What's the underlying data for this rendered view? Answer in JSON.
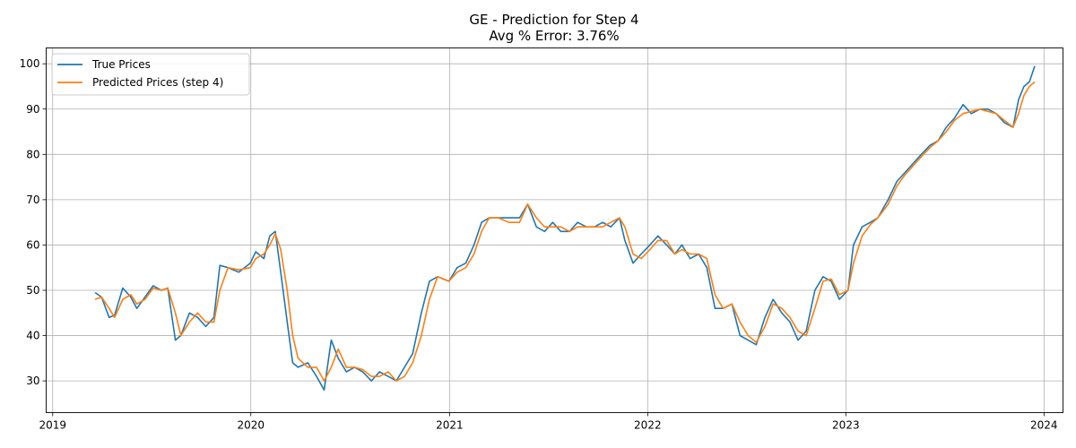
{
  "chart_data": {
    "type": "line",
    "title": "GE - Prediction for Step 4",
    "subtitle": "Avg % Error: 3.76%",
    "xlabel": "",
    "ylabel": "",
    "x_range": [
      "2018-12-20",
      "2024-02-05"
    ],
    "ylim": [
      23,
      103.5
    ],
    "x_ticks": [
      "2019-01-01",
      "2020-01-01",
      "2021-01-01",
      "2022-01-01",
      "2023-01-01",
      "2024-01-01"
    ],
    "x_tick_labels": [
      "2019",
      "2020",
      "2021",
      "2022",
      "2023",
      "2024"
    ],
    "y_ticks": [
      30,
      40,
      50,
      60,
      70,
      80,
      90,
      100
    ],
    "grid": true,
    "legend_position": "top-left",
    "series": [
      {
        "name": "True Prices",
        "color": "#1f77b4",
        "points": [
          [
            "2019-03-20",
            49.5
          ],
          [
            "2019-04-01",
            48.5
          ],
          [
            "2019-04-15",
            44
          ],
          [
            "2019-04-25",
            44.5
          ],
          [
            "2019-05-10",
            50.5
          ],
          [
            "2019-05-25",
            48.5
          ],
          [
            "2019-06-05",
            46
          ],
          [
            "2019-06-20",
            48.5
          ],
          [
            "2019-07-05",
            51
          ],
          [
            "2019-07-20",
            50
          ],
          [
            "2019-08-01",
            50.5
          ],
          [
            "2019-08-15",
            39
          ],
          [
            "2019-08-25",
            40
          ],
          [
            "2019-09-10",
            45
          ],
          [
            "2019-09-25",
            44
          ],
          [
            "2019-10-10",
            42
          ],
          [
            "2019-10-25",
            44
          ],
          [
            "2019-11-05",
            55.5
          ],
          [
            "2019-11-20",
            55
          ],
          [
            "2019-12-10",
            54
          ],
          [
            "2019-12-31",
            56
          ],
          [
            "2020-01-10",
            58.5
          ],
          [
            "2020-01-25",
            57
          ],
          [
            "2020-02-05",
            62
          ],
          [
            "2020-02-15",
            63
          ],
          [
            "2020-02-25",
            54
          ],
          [
            "2020-03-08",
            43
          ],
          [
            "2020-03-18",
            34
          ],
          [
            "2020-03-28",
            33
          ],
          [
            "2020-04-15",
            34
          ],
          [
            "2020-05-01",
            31
          ],
          [
            "2020-05-15",
            28
          ],
          [
            "2020-05-28",
            39
          ],
          [
            "2020-06-10",
            35
          ],
          [
            "2020-06-25",
            32
          ],
          [
            "2020-07-10",
            33
          ],
          [
            "2020-07-25",
            32
          ],
          [
            "2020-08-10",
            30
          ],
          [
            "2020-08-25",
            32
          ],
          [
            "2020-09-10",
            31
          ],
          [
            "2020-09-25",
            30
          ],
          [
            "2020-10-10",
            33
          ],
          [
            "2020-10-25",
            36
          ],
          [
            "2020-11-10",
            45
          ],
          [
            "2020-11-25",
            52
          ],
          [
            "2020-12-10",
            53
          ],
          [
            "2020-12-31",
            52
          ],
          [
            "2021-01-15",
            55
          ],
          [
            "2021-01-31",
            56
          ],
          [
            "2021-02-15",
            60
          ],
          [
            "2021-03-01",
            65
          ],
          [
            "2021-03-15",
            66
          ],
          [
            "2021-04-01",
            66
          ],
          [
            "2021-04-20",
            66
          ],
          [
            "2021-05-10",
            66
          ],
          [
            "2021-05-25",
            69
          ],
          [
            "2021-06-10",
            64
          ],
          [
            "2021-06-25",
            63
          ],
          [
            "2021-07-10",
            65
          ],
          [
            "2021-07-25",
            63
          ],
          [
            "2021-08-10",
            63
          ],
          [
            "2021-08-25",
            65
          ],
          [
            "2021-09-10",
            64
          ],
          [
            "2021-09-25",
            64
          ],
          [
            "2021-10-10",
            65
          ],
          [
            "2021-10-25",
            64
          ],
          [
            "2021-11-10",
            66
          ],
          [
            "2021-11-20",
            61
          ],
          [
            "2021-12-05",
            56
          ],
          [
            "2021-12-20",
            58
          ],
          [
            "2022-01-05",
            60
          ],
          [
            "2022-01-20",
            62
          ],
          [
            "2022-02-05",
            60
          ],
          [
            "2022-02-20",
            58
          ],
          [
            "2022-03-05",
            60
          ],
          [
            "2022-03-20",
            57
          ],
          [
            "2022-04-05",
            58
          ],
          [
            "2022-04-20",
            55
          ],
          [
            "2022-05-05",
            46
          ],
          [
            "2022-05-20",
            46
          ],
          [
            "2022-06-05",
            47
          ],
          [
            "2022-06-20",
            40
          ],
          [
            "2022-07-05",
            39
          ],
          [
            "2022-07-20",
            38
          ],
          [
            "2022-08-05",
            44
          ],
          [
            "2022-08-20",
            48
          ],
          [
            "2022-09-05",
            45
          ],
          [
            "2022-09-20",
            43
          ],
          [
            "2022-10-05",
            39
          ],
          [
            "2022-10-20",
            41
          ],
          [
            "2022-11-05",
            50
          ],
          [
            "2022-11-20",
            53
          ],
          [
            "2022-12-05",
            52
          ],
          [
            "2022-12-20",
            48
          ],
          [
            "2023-01-05",
            50
          ],
          [
            "2023-01-15",
            60
          ],
          [
            "2023-01-31",
            64
          ],
          [
            "2023-02-15",
            65
          ],
          [
            "2023-03-01",
            66
          ],
          [
            "2023-03-20",
            70
          ],
          [
            "2023-04-05",
            74
          ],
          [
            "2023-04-20",
            76
          ],
          [
            "2023-05-05",
            78
          ],
          [
            "2023-05-20",
            80
          ],
          [
            "2023-06-05",
            82
          ],
          [
            "2023-06-20",
            83
          ],
          [
            "2023-07-05",
            86
          ],
          [
            "2023-07-20",
            88
          ],
          [
            "2023-08-05",
            91
          ],
          [
            "2023-08-20",
            89
          ],
          [
            "2023-09-05",
            90
          ],
          [
            "2023-09-20",
            90
          ],
          [
            "2023-10-05",
            89
          ],
          [
            "2023-10-20",
            87
          ],
          [
            "2023-11-05",
            86
          ],
          [
            "2023-11-15",
            92
          ],
          [
            "2023-11-25",
            95
          ],
          [
            "2023-12-05",
            96
          ],
          [
            "2023-12-15",
            99.5
          ]
        ]
      },
      {
        "name": "Predicted Prices (step 4)",
        "color": "#ff7f0e",
        "points": [
          [
            "2019-03-20",
            48
          ],
          [
            "2019-04-01",
            48.5
          ],
          [
            "2019-04-15",
            46
          ],
          [
            "2019-04-25",
            44
          ],
          [
            "2019-05-10",
            48
          ],
          [
            "2019-05-25",
            49
          ],
          [
            "2019-06-05",
            47
          ],
          [
            "2019-06-20",
            48
          ],
          [
            "2019-07-05",
            50.5
          ],
          [
            "2019-07-20",
            50
          ],
          [
            "2019-08-01",
            50.5
          ],
          [
            "2019-08-15",
            45
          ],
          [
            "2019-08-25",
            40
          ],
          [
            "2019-09-10",
            43
          ],
          [
            "2019-09-25",
            45
          ],
          [
            "2019-10-10",
            43
          ],
          [
            "2019-10-25",
            43
          ],
          [
            "2019-11-05",
            50
          ],
          [
            "2019-11-20",
            55
          ],
          [
            "2019-12-10",
            54.5
          ],
          [
            "2019-12-31",
            55
          ],
          [
            "2020-01-10",
            57
          ],
          [
            "2020-01-25",
            58
          ],
          [
            "2020-02-05",
            60
          ],
          [
            "2020-02-15",
            62.5
          ],
          [
            "2020-02-25",
            59
          ],
          [
            "2020-03-08",
            50
          ],
          [
            "2020-03-18",
            40
          ],
          [
            "2020-03-28",
            35
          ],
          [
            "2020-04-15",
            33
          ],
          [
            "2020-05-01",
            33
          ],
          [
            "2020-05-15",
            30
          ],
          [
            "2020-05-28",
            33
          ],
          [
            "2020-06-10",
            37
          ],
          [
            "2020-06-25",
            33
          ],
          [
            "2020-07-10",
            33
          ],
          [
            "2020-07-25",
            32.5
          ],
          [
            "2020-08-10",
            31
          ],
          [
            "2020-08-25",
            31
          ],
          [
            "2020-09-10",
            32
          ],
          [
            "2020-09-25",
            30
          ],
          [
            "2020-10-10",
            31
          ],
          [
            "2020-10-25",
            34
          ],
          [
            "2020-11-10",
            40
          ],
          [
            "2020-11-25",
            48
          ],
          [
            "2020-12-10",
            53
          ],
          [
            "2020-12-31",
            52
          ],
          [
            "2021-01-15",
            54
          ],
          [
            "2021-01-31",
            55
          ],
          [
            "2021-02-15",
            58
          ],
          [
            "2021-03-01",
            63
          ],
          [
            "2021-03-15",
            66
          ],
          [
            "2021-04-01",
            66
          ],
          [
            "2021-04-20",
            65
          ],
          [
            "2021-05-10",
            65
          ],
          [
            "2021-05-25",
            69
          ],
          [
            "2021-06-10",
            66
          ],
          [
            "2021-06-25",
            64
          ],
          [
            "2021-07-10",
            64
          ],
          [
            "2021-07-25",
            64
          ],
          [
            "2021-08-10",
            63
          ],
          [
            "2021-08-25",
            64
          ],
          [
            "2021-09-10",
            64
          ],
          [
            "2021-09-25",
            64
          ],
          [
            "2021-10-10",
            64
          ],
          [
            "2021-10-25",
            65
          ],
          [
            "2021-11-10",
            66
          ],
          [
            "2021-11-20",
            64
          ],
          [
            "2021-12-05",
            58
          ],
          [
            "2021-12-20",
            57
          ],
          [
            "2022-01-05",
            59
          ],
          [
            "2022-01-20",
            61
          ],
          [
            "2022-02-05",
            61
          ],
          [
            "2022-02-20",
            58
          ],
          [
            "2022-03-05",
            59
          ],
          [
            "2022-03-20",
            58
          ],
          [
            "2022-04-05",
            58
          ],
          [
            "2022-04-20",
            57
          ],
          [
            "2022-05-05",
            49
          ],
          [
            "2022-05-20",
            46
          ],
          [
            "2022-06-05",
            47
          ],
          [
            "2022-06-20",
            43
          ],
          [
            "2022-07-05",
            40
          ],
          [
            "2022-07-20",
            38.5
          ],
          [
            "2022-08-05",
            42
          ],
          [
            "2022-08-20",
            47
          ],
          [
            "2022-09-05",
            46
          ],
          [
            "2022-09-20",
            44
          ],
          [
            "2022-10-05",
            41
          ],
          [
            "2022-10-20",
            40
          ],
          [
            "2022-11-05",
            46
          ],
          [
            "2022-11-20",
            52
          ],
          [
            "2022-12-05",
            52.5
          ],
          [
            "2022-12-20",
            49
          ],
          [
            "2023-01-05",
            50
          ],
          [
            "2023-01-15",
            56
          ],
          [
            "2023-01-31",
            62
          ],
          [
            "2023-02-15",
            64.5
          ],
          [
            "2023-03-01",
            66
          ],
          [
            "2023-03-20",
            69
          ],
          [
            "2023-04-05",
            73
          ],
          [
            "2023-04-20",
            75.5
          ],
          [
            "2023-05-05",
            77.5
          ],
          [
            "2023-05-20",
            79.5
          ],
          [
            "2023-06-05",
            81.5
          ],
          [
            "2023-06-20",
            83
          ],
          [
            "2023-07-05",
            85
          ],
          [
            "2023-07-20",
            87.5
          ],
          [
            "2023-08-05",
            89
          ],
          [
            "2023-08-20",
            89.5
          ],
          [
            "2023-09-05",
            90
          ],
          [
            "2023-09-20",
            89.5
          ],
          [
            "2023-10-05",
            89
          ],
          [
            "2023-10-20",
            87.5
          ],
          [
            "2023-11-05",
            86
          ],
          [
            "2023-11-15",
            89
          ],
          [
            "2023-11-25",
            93
          ],
          [
            "2023-12-05",
            95
          ],
          [
            "2023-12-15",
            96
          ]
        ]
      }
    ]
  }
}
